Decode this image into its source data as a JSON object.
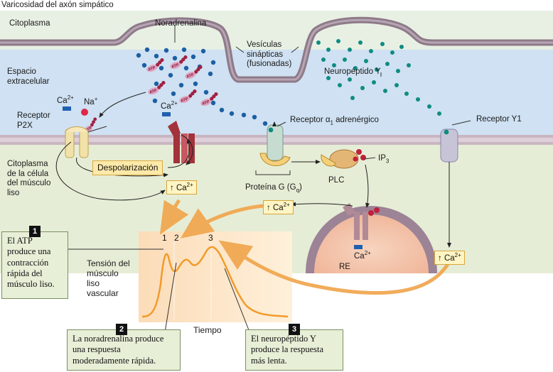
{
  "header": {
    "title": "Varicosidad del axón simpático"
  },
  "regions": {
    "cytoplasm_top": "Citoplasma",
    "extracellular": [
      "Espacio",
      "extracelular"
    ],
    "smooth_muscle_cytoplasm": [
      "Citoplasma",
      "de la célula",
      "del músculo",
      "liso"
    ]
  },
  "labels": {
    "noradrenaline": "Noradrenalina",
    "vesicles": [
      "Vesículas",
      "sinápticas",
      "(fusionadas)"
    ],
    "neuropeptide_y": "Neuropéptido Y",
    "p2x": [
      "Receptor",
      "P2X"
    ],
    "alpha1": "Receptor α",
    "alpha1_sub": "1",
    "alpha1_tail": " adrenérgico",
    "y1": "Receptor Y1",
    "g_protein": "Proteína G (G",
    "g_protein_sub": "q",
    "g_protein_tail": ")",
    "plc": "PLC",
    "ip3": "IP",
    "ip3_sub": "3",
    "re": "RE",
    "ca_label": "Ca",
    "ca_sup": "2+",
    "na_label": "Na",
    "na_sup": "+",
    "atp": "ATP",
    "depolarization": "Despolarización",
    "ca_increase_prefix": "↑"
  },
  "graph": {
    "ylabel": [
      "Tensión del",
      "músculo",
      "liso",
      "vascular"
    ],
    "xlabel": "Tiempo",
    "peaks": [
      "1",
      "2",
      "3"
    ]
  },
  "callouts": [
    {
      "number": "1",
      "text": [
        "El ATP",
        "produce una",
        "contracción",
        "rápida del",
        "músculo liso."
      ]
    },
    {
      "number": "2",
      "text": [
        "La noradrenalina produce",
        "una respuesta",
        "moderadamente rápida."
      ]
    },
    {
      "number": "3",
      "text": [
        "El neuropéptido Y",
        "produce la respuesta",
        "más lenta."
      ]
    }
  ],
  "colors": {
    "extracellular": "#cfe1f2",
    "axon_membrane": "#9a8694",
    "axon_cytoplasm": "#e8f0e4",
    "muscle_cytoplasm": "#e6edd6",
    "noradrenaline_dot": "#1c5fa3",
    "neuropeptide_dot": "#0f8c82",
    "graph_bg": "#fde8cc",
    "graph_line": "#f29b2a",
    "ca_channel": "#a3323a",
    "er_fill": "#f4c4ac"
  }
}
